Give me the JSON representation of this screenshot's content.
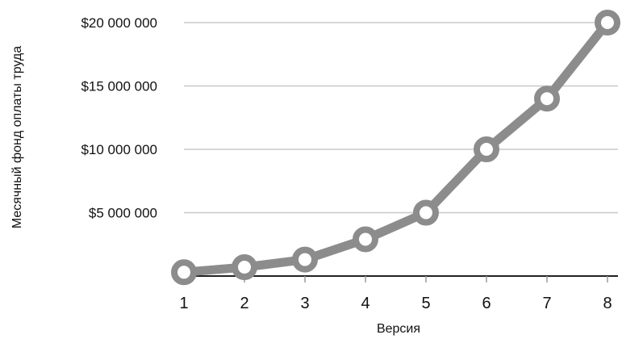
{
  "chart_data": {
    "type": "line",
    "x": [
      1,
      2,
      3,
      4,
      5,
      6,
      7,
      8
    ],
    "series": [
      {
        "values": [
          300000,
          700000,
          1300000,
          2900000,
          5000000,
          10000000,
          14000000,
          20000000
        ]
      }
    ],
    "xlabel": "Версия",
    "ylabel": "Месячный фонд оплаты труда",
    "ylim": [
      0,
      20000000
    ],
    "y_ticks": [
      5000000,
      10000000,
      15000000,
      20000000
    ],
    "y_tick_labels": [
      "$5 000 000",
      "$10 000 000",
      "$15 000 000",
      "$20 000 000"
    ],
    "x_tick_labels": [
      "1",
      "2",
      "3",
      "4",
      "5",
      "6",
      "7",
      "8"
    ],
    "grid": true,
    "line_color": "#8c8c8c",
    "marker_fill": "#ffffff",
    "gridline_color": "#c8c8c8",
    "axis_color": "#222222"
  }
}
